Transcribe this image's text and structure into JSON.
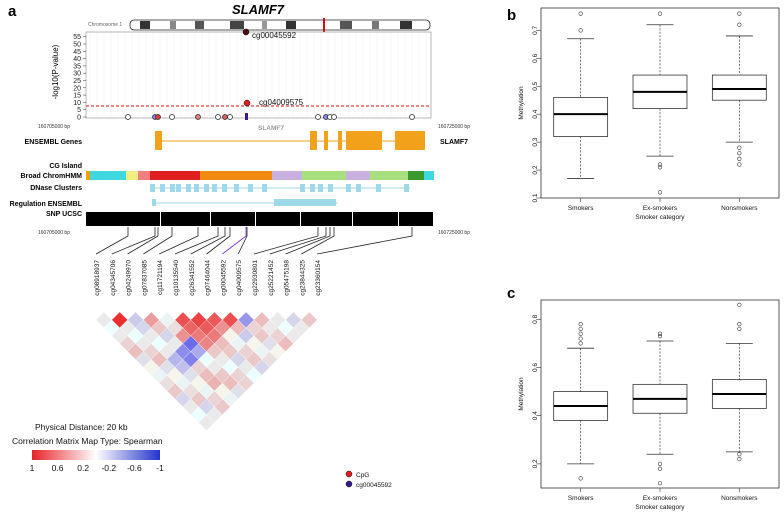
{
  "panels": {
    "a": "a",
    "b": "b",
    "c": "c"
  },
  "panel_a": {
    "gene_title": "SLAMF7",
    "chromosome_label": "Chromosome 1",
    "y_axis_label": "-log10(P-value)",
    "y_ticks": [
      "0",
      "5",
      "10",
      "15",
      "20",
      "25",
      "30",
      "35",
      "40",
      "45",
      "50",
      "55"
    ],
    "coord_left": "160705000 bp",
    "coord_right": "160725000 bp",
    "annotations": {
      "top_cpg": "cg00045592",
      "second_cpg": "cg04009575"
    },
    "gene_inline_label": "SLAMF7",
    "gene_right_label": "SLAMF7",
    "tracks": [
      "ENSEMBL Genes",
      "CG Island",
      "Broad ChromHMM",
      "DNase Clusters",
      "Regulation ENSEMBL",
      "SNP UCSC"
    ],
    "cpg_ids": [
      "cg08918937",
      "cg04345706",
      "cg04249970",
      "cg07837085",
      "cg11721194",
      "cg10135540",
      "cg26341552",
      "cg07464044",
      "cg00045592",
      "cg04009575",
      "cg22930801",
      "cg25221452",
      "cg05475198",
      "cg23844325",
      "cg23360154"
    ],
    "physical_distance": "Physical Distance: 20 kb",
    "matrix_type": "Correlation Matrix Map Type: Spearman",
    "colorbar_ticks": [
      "1",
      "0.6",
      "0.2",
      "-0.2",
      "-0.6",
      "-1"
    ],
    "legend": [
      {
        "label": "CpG",
        "color": "#e02020"
      },
      {
        "label": "cg00045592",
        "color": "#3a1a8a"
      }
    ],
    "colors": {
      "positive": "#e8232a",
      "negative": "#2233cc",
      "threshold_line": "#d01010"
    }
  },
  "chart_data": [
    {
      "id": "b",
      "type": "boxplot",
      "title": "",
      "xlabel": "Smoker category",
      "ylabel": "Methylation",
      "categories": [
        "Smokers",
        "Ex-smokers",
        "Nonsmokers"
      ],
      "ylim": [
        0.1,
        0.78
      ],
      "yticks": [
        0.1,
        0.2,
        0.3,
        0.4,
        0.5,
        0.6,
        0.7
      ],
      "boxes": [
        {
          "min": 0.17,
          "q1": 0.32,
          "median": 0.4,
          "q3": 0.46,
          "max": 0.67,
          "outliers": [
            0.7,
            0.76
          ]
        },
        {
          "min": 0.25,
          "q1": 0.42,
          "median": 0.48,
          "q3": 0.54,
          "max": 0.72,
          "outliers": [
            0.12,
            0.21,
            0.22,
            0.76
          ]
        },
        {
          "min": 0.3,
          "q1": 0.45,
          "median": 0.49,
          "q3": 0.54,
          "max": 0.68,
          "outliers": [
            0.22,
            0.24,
            0.26,
            0.28,
            0.72,
            0.76
          ]
        }
      ]
    },
    {
      "id": "c",
      "type": "boxplot",
      "title": "",
      "xlabel": "Smoker category",
      "ylabel": "Methylation",
      "categories": [
        "Smokers",
        "Ex-smokers",
        "Nonsmokers"
      ],
      "ylim": [
        0.1,
        0.88
      ],
      "yticks": [
        0.2,
        0.4,
        0.6,
        0.8
      ],
      "boxes": [
        {
          "min": 0.2,
          "q1": 0.38,
          "median": 0.44,
          "q3": 0.5,
          "max": 0.68,
          "outliers": [
            0.14,
            0.7,
            0.72,
            0.74,
            0.76,
            0.78
          ]
        },
        {
          "min": 0.24,
          "q1": 0.41,
          "median": 0.47,
          "q3": 0.53,
          "max": 0.71,
          "outliers": [
            0.12,
            0.18,
            0.2,
            0.73,
            0.74
          ]
        },
        {
          "min": 0.25,
          "q1": 0.43,
          "median": 0.49,
          "q3": 0.55,
          "max": 0.7,
          "outliers": [
            0.22,
            0.24,
            0.76,
            0.78,
            0.86
          ]
        }
      ]
    }
  ]
}
